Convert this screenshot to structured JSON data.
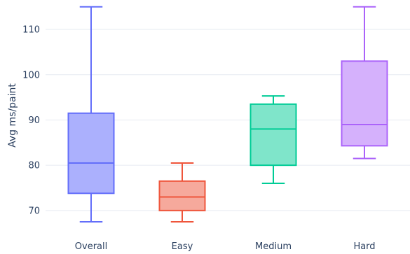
{
  "chart_data": {
    "type": "box",
    "title": "",
    "xlabel": "",
    "ylabel": "Avg ms/paint",
    "ylim": [
      65.5,
      116.5
    ],
    "y_ticks": [
      70,
      80,
      90,
      100,
      110
    ],
    "grid": true,
    "legend": "none",
    "series": [
      {
        "category": "Overall",
        "min": 67.5,
        "q1": 73.8,
        "median": 80.5,
        "q3": 91.5,
        "max": 115.0,
        "stroke": "#636efa",
        "fill": "#abb0fd"
      },
      {
        "category": "Easy",
        "min": 67.5,
        "q1": 70.0,
        "median": 73.0,
        "q3": 76.5,
        "max": 80.5,
        "stroke": "#ef553b",
        "fill": "#f6a99c"
      },
      {
        "category": "Medium",
        "min": 76.0,
        "q1": 80.0,
        "median": 88.0,
        "q3": 93.5,
        "max": 95.3,
        "stroke": "#00cc96",
        "fill": "#7fe5ca"
      },
      {
        "category": "Hard",
        "min": 81.5,
        "q1": 84.3,
        "median": 89.0,
        "q3": 103.0,
        "max": 115.0,
        "stroke": "#ab63fa",
        "fill": "#d5b1fc"
      }
    ]
  }
}
